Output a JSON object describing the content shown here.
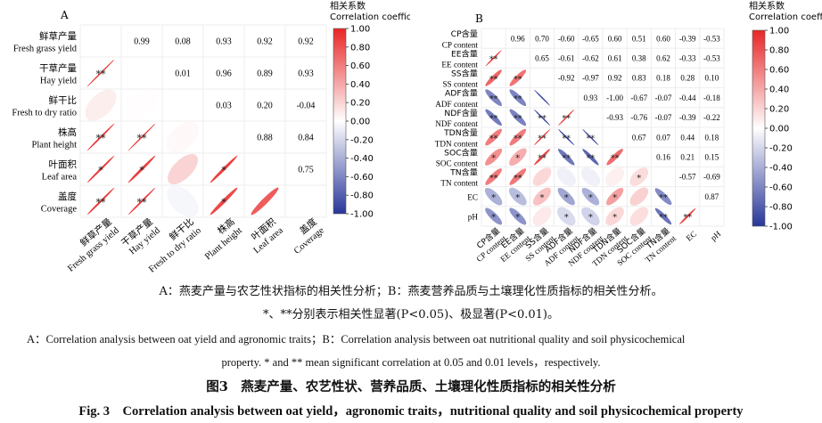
{
  "chart_data": [
    {
      "type": "heatmap",
      "panel_label": "A",
      "colorbar_title_zh": "相关系数",
      "colorbar_title_en": "Correlation  coefficient",
      "colorbar_ticks": [
        "1.00",
        "0.80",
        "0.60",
        "0.40",
        "0.20",
        "0.00",
        "-0.20",
        "-0.40",
        "-0.60",
        "-0.80",
        "-1.00"
      ],
      "vlim": [
        -1,
        1
      ],
      "variables": [
        {
          "zh": "鲜草产量",
          "en": "Fresh grass yield"
        },
        {
          "zh": "干草产量",
          "en": "Hay yield"
        },
        {
          "zh": "鲜干比",
          "en": "Fresh to dry ratio"
        },
        {
          "zh": "株高",
          "en": "Plant height"
        },
        {
          "zh": "叶面积",
          "en": "Leaf area"
        },
        {
          "zh": "盖度",
          "en": "Coverage"
        }
      ],
      "matrix": [
        [
          1.0,
          0.99,
          0.08,
          0.93,
          0.92,
          0.92
        ],
        [
          0.99,
          1.0,
          0.01,
          0.96,
          0.89,
          0.93
        ],
        [
          0.08,
          0.01,
          1.0,
          0.03,
          0.2,
          -0.04
        ],
        [
          0.93,
          0.96,
          0.03,
          1.0,
          0.88,
          0.84
        ],
        [
          0.92,
          0.89,
          0.2,
          0.88,
          1.0,
          0.75
        ],
        [
          0.92,
          0.93,
          -0.04,
          0.84,
          0.75,
          1.0
        ]
      ],
      "significance": [
        [
          "",
          "",
          "",
          "",
          "",
          ""
        ],
        [
          "**",
          "",
          "",
          "",
          "",
          ""
        ],
        [
          "",
          "",
          "",
          "",
          "",
          ""
        ],
        [
          "**",
          "**",
          "",
          "",
          "",
          ""
        ],
        [
          "*",
          "*",
          "",
          "*",
          "",
          ""
        ],
        [
          "**",
          "**",
          "",
          "*",
          "",
          ""
        ]
      ]
    },
    {
      "type": "heatmap",
      "panel_label": "B",
      "colorbar_title_zh": "相关系数",
      "colorbar_title_en": "Correlation coefficient",
      "colorbar_ticks": [
        "1.00",
        "0.80",
        "0.60",
        "0.40",
        "0.20",
        "0.00",
        "-0.20",
        "-0.40",
        "-0.60",
        "-0.80",
        "-1.00"
      ],
      "vlim": [
        -1,
        1
      ],
      "variables": [
        {
          "zh": "CP含量",
          "en": "CP content"
        },
        {
          "zh": "EE含量",
          "en": "EE content"
        },
        {
          "zh": "SS含量",
          "en": "SS content"
        },
        {
          "zh": "ADF含量",
          "en": "ADF content"
        },
        {
          "zh": "NDF含量",
          "en": "NDF content"
        },
        {
          "zh": "TDN含量",
          "en": "TDN content"
        },
        {
          "zh": "SOC含量",
          "en": "SOC content"
        },
        {
          "zh": "TN含量",
          "en": "TN content"
        },
        {
          "zh": "",
          "en": "EC"
        },
        {
          "zh": "",
          "en": "pH"
        }
      ],
      "matrix": [
        [
          1.0,
          0.96,
          0.7,
          -0.6,
          -0.65,
          0.6,
          0.51,
          0.6,
          -0.39,
          -0.53
        ],
        [
          0.96,
          1.0,
          0.65,
          -0.61,
          -0.62,
          0.61,
          0.38,
          0.62,
          -0.33,
          -0.53
        ],
        [
          0.7,
          0.65,
          1.0,
          -0.92,
          -0.97,
          0.92,
          0.83,
          0.18,
          0.28,
          0.1
        ],
        [
          -0.6,
          -0.61,
          -0.92,
          1.0,
          0.93,
          -1.0,
          -0.67,
          -0.07,
          -0.44,
          -0.18
        ],
        [
          -0.65,
          -0.62,
          -0.97,
          0.93,
          1.0,
          -0.93,
          -0.76,
          -0.07,
          -0.39,
          -0.22
        ],
        [
          0.6,
          0.61,
          0.92,
          -1.0,
          -0.93,
          1.0,
          0.67,
          0.07,
          0.44,
          0.18
        ],
        [
          0.51,
          0.38,
          0.83,
          -0.67,
          -0.76,
          0.67,
          1.0,
          0.16,
          0.21,
          0.15
        ],
        [
          0.6,
          0.62,
          0.18,
          -0.07,
          -0.07,
          0.07,
          0.16,
          1.0,
          -0.57,
          -0.69
        ],
        [
          -0.39,
          -0.33,
          0.28,
          -0.44,
          -0.39,
          0.44,
          0.21,
          -0.57,
          1.0,
          0.87
        ],
        [
          -0.53,
          -0.53,
          0.1,
          -0.18,
          -0.22,
          0.18,
          0.15,
          -0.69,
          0.87,
          1.0
        ]
      ],
      "significance": [
        [
          "",
          "",
          "",
          "",
          "",
          "",
          "",
          "",
          "",
          ""
        ],
        [
          "**",
          "",
          "",
          "",
          "",
          "",
          "",
          "",
          "",
          ""
        ],
        [
          "**",
          "**",
          "",
          "",
          "",
          "",
          "",
          "",
          "",
          ""
        ],
        [
          "**",
          "**",
          "",
          "",
          "",
          "",
          "",
          "",
          "",
          ""
        ],
        [
          "**",
          "**",
          "**",
          "**",
          "",
          "",
          "",
          "",
          "",
          ""
        ],
        [
          "**",
          "**",
          "**",
          "**",
          "**",
          "",
          "",
          "",
          "",
          ""
        ],
        [
          "*",
          "*",
          "**",
          "**",
          "**",
          "**",
          "",
          "",
          "",
          ""
        ],
        [
          "**",
          "**",
          "",
          "",
          "",
          "",
          "*",
          "",
          "",
          ""
        ],
        [
          "*",
          "*",
          "*",
          "*",
          "*",
          "*",
          "",
          "**",
          "",
          ""
        ],
        [
          "*",
          "*",
          "",
          "*",
          "*",
          "*",
          "",
          "**",
          "**",
          ""
        ]
      ]
    }
  ],
  "captions": {
    "sub_zh": "A：燕麦产量与农艺性状指标的相关性分析；B：燕麦营养品质与土壤理化性质指标的相关性分析。",
    "sig_zh": "*、**分别表示相关性显著(P<0.05)、极显著(P<0.01)。",
    "sub_en_1": "A：Correlation analysis between oat yield and agronomic traits；B：Correlation analysis between oat nutritional quality and soil physicochemical",
    "sub_en_2": "property. * and ** mean significant correlation at 0.05 and 0.01 levels，respectively.",
    "title_zh": "图3　燕麦产量、农艺性状、营养品质、土壤理化性质指标的相关性分析",
    "title_en": "Fig. 3　Correlation analysis between oat yield，agronomic traits，nutritional quality and soil physicochemical property"
  }
}
